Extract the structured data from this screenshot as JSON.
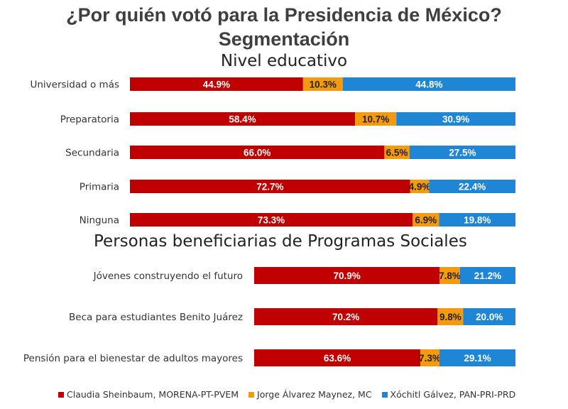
{
  "colors": {
    "claudia": "#c00000",
    "jorge": "#f59a0e",
    "xochitl": "#1f86d6"
  },
  "header": {
    "title_line1": "¿Por quién votó para la Presidencia de México?",
    "title_line2": "Segmentación"
  },
  "legend": {
    "claudia": "Claudia Sheinbaum, MORENA-PT-PVEM",
    "jorge": "Jorge Álvarez Maynez, MC",
    "xochitl": "Xóchitl Gálvez, PAN-PRI-PRD"
  },
  "chart_data": [
    {
      "type": "bar",
      "stacked": true,
      "orientation": "horizontal",
      "title": "Nivel educativo",
      "categories": [
        "Universidad o más",
        "Preparatoria",
        "Secundaria",
        "Primaria",
        "Ninguna"
      ],
      "series": [
        {
          "name": "Claudia Sheinbaum, MORENA-PT-PVEM",
          "values": [
            44.9,
            58.4,
            66.0,
            72.7,
            73.3
          ],
          "labels": [
            "44.9%",
            "58.4%",
            "66.0%",
            "72.7%",
            "73.3%"
          ]
        },
        {
          "name": "Jorge Álvarez Maynez, MC",
          "values": [
            10.3,
            10.7,
            6.5,
            4.9,
            6.9
          ],
          "labels": [
            "10.3%",
            "10.7%",
            "6.5%",
            "4.9%",
            "6.9%"
          ]
        },
        {
          "name": "Xóchitl Gálvez, PAN-PRI-PRD",
          "values": [
            44.8,
            30.9,
            27.5,
            22.4,
            19.8
          ],
          "labels": [
            "44.8%",
            "30.9%",
            "27.5%",
            "22.4%",
            "19.8%"
          ]
        }
      ],
      "xlim": [
        0,
        100
      ]
    },
    {
      "type": "bar",
      "stacked": true,
      "orientation": "horizontal",
      "title": "Personas beneficiarias de Programas Sociales",
      "categories": [
        "Jóvenes construyendo el futuro",
        "Beca para estudiantes Benito Juárez",
        "Pensión para el bienestar de adultos mayores"
      ],
      "series": [
        {
          "name": "Claudia Sheinbaum, MORENA-PT-PVEM",
          "values": [
            70.9,
            70.2,
            63.6
          ],
          "labels": [
            "70.9%",
            "70.2%",
            "63.6%"
          ]
        },
        {
          "name": "Jorge Álvarez Maynez, MC",
          "values": [
            7.8,
            9.8,
            7.3
          ],
          "labels": [
            "7.8%",
            "9.8%",
            "7.3%"
          ]
        },
        {
          "name": "Xóchitl Gálvez, PAN-PRI-PRD",
          "values": [
            21.2,
            20.0,
            29.1
          ],
          "labels": [
            "21.2%",
            "20.0%",
            "29.1%"
          ]
        }
      ],
      "xlim": [
        0,
        100
      ]
    }
  ]
}
